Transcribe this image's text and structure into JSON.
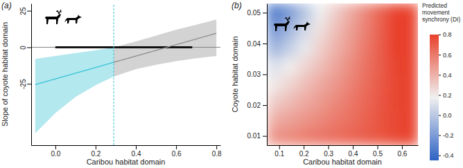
{
  "chart_data": [
    {
      "type": "line",
      "panel_label": "(a)",
      "x_label": "Caribou habitat domain",
      "y_label": "Slope of coyote habitat domain",
      "xlim": [
        -0.12,
        0.82
      ],
      "xticks": [
        {
          "value": 0,
          "label": "0.0"
        },
        0.2,
        0.4,
        0.6,
        0.8
      ],
      "ylim": [
        -67,
        30
      ],
      "yticks": [
        -25,
        0,
        25
      ],
      "series": [
        {
          "color": "#36c2d6",
          "line_style": "solid",
          "x": [
            -0.1,
            0,
            0.1,
            0.2,
            0.29
          ],
          "values": [
            -25.5,
            -21.6,
            -17.7,
            -13.8,
            -10.3
          ],
          "lower": [
            -59,
            -45,
            -34,
            -26,
            -20
          ],
          "upper": [
            -8,
            -6,
            -4,
            -2,
            0
          ]
        },
        {
          "color": "#8c8c8c",
          "line_style": "solid",
          "x": [
            0.29,
            0.4,
            0.5,
            0.6,
            0.7,
            0.8
          ],
          "values": [
            -10.3,
            -6.0,
            -2.1,
            1.8,
            5.7,
            9.6
          ],
          "lower": [
            -20,
            -15,
            -12,
            -9.5,
            -7.5,
            -6
          ],
          "upper": [
            0,
            4,
            8,
            12,
            15.5,
            19
          ]
        }
      ],
      "reference_lines": [
        {
          "y": 0,
          "color": "#7f7f7f",
          "line_style": "solid"
        },
        {
          "y": 0,
          "x": [
            0,
            0.68
          ],
          "color": "#000000",
          "line_style": "solid"
        },
        {
          "x": 0.29,
          "color": "#36c2d6",
          "line_style": "dashed"
        }
      ]
    },
    {
      "type": "heatmap",
      "panel_label": "(b)",
      "x_label": "Caribou habitat domain",
      "y_label": "Coyote habitat domain",
      "xlim": [
        0.05,
        0.665
      ],
      "xticks": [
        0.1,
        0.2,
        0.3,
        0.4,
        0.5,
        0.6
      ],
      "ylim": [
        0.007,
        0.053
      ],
      "yticks": [
        0.01,
        0.02,
        0.03,
        0.04,
        0.05
      ],
      "x_bins": [
        0.05,
        0.1115,
        0.173,
        0.2345,
        0.296,
        0.3575,
        0.419,
        0.4805,
        0.542,
        0.6035,
        0.665
      ],
      "y_bins": [
        0.007,
        0.01275,
        0.0185,
        0.02425,
        0.03,
        0.03575,
        0.0415,
        0.04725,
        0.053
      ],
      "values": [
        [
          0.51,
          0.54,
          0.58,
          0.61,
          0.64,
          0.67,
          0.7,
          0.73,
          0.77,
          0.8
        ],
        [
          0.41,
          0.45,
          0.5,
          0.54,
          0.59,
          0.63,
          0.68,
          0.73,
          0.77,
          0.8
        ],
        [
          0.3,
          0.36,
          0.42,
          0.48,
          0.54,
          0.6,
          0.66,
          0.72,
          0.78,
          0.8
        ],
        [
          0.2,
          0.27,
          0.35,
          0.42,
          0.49,
          0.56,
          0.64,
          0.71,
          0.78,
          0.8
        ],
        [
          0.1,
          0.18,
          0.27,
          0.35,
          0.44,
          0.53,
          0.62,
          0.7,
          0.79,
          0.8
        ],
        [
          -0.1,
          0.03,
          0.15,
          0.29,
          0.39,
          0.49,
          0.6,
          0.7,
          0.8,
          0.8
        ],
        [
          -0.22,
          -0.08,
          0.08,
          0.23,
          0.35,
          0.46,
          0.57,
          0.69,
          0.8,
          0.8
        ],
        [
          -0.35,
          -0.2,
          -0.02,
          0.17,
          0.3,
          0.42,
          0.55,
          0.68,
          0.8,
          0.8
        ]
      ],
      "colorbar": {
        "title": [
          "Predicted",
          "movement",
          "synchrony (DI)"
        ],
        "range": [
          -0.45,
          0.8
        ],
        "ticks": [
          0.8,
          0.6,
          0.4,
          0.2,
          {
            "value": 0,
            "label": "0.0"
          },
          -0.2,
          -0.4
        ],
        "colors": [
          "#2f62c4",
          "#f0f0f0",
          "#e8412b"
        ]
      }
    }
  ]
}
